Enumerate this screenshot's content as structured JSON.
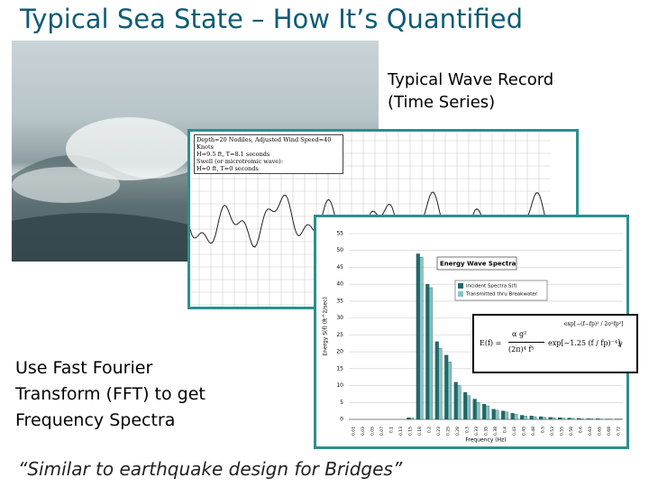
{
  "slide": {
    "title": "Typical Sea State – How It’s Quantified",
    "wave_caption": [
      "Typical Wave Record",
      "(Time Series)"
    ],
    "fft_caption": [
      "Use Fast Fourier",
      "Transform (FFT) to get",
      "Frequency Spectra"
    ],
    "quote": "“Similar to earthquake design for Bridges”",
    "wave_record_header": [
      "Depth=20 Nodiles, Adjusted Wind Speed=40 Knots",
      "H=9.5 ft, T=8.1 seconds",
      "Swell (or microtromic wave):",
      "H=0 ft, T=0 seconds"
    ],
    "formula": {
      "lhs": "E(f) =",
      "num": "α g²",
      "den": "(2π)⁴ f⁵",
      "exp": "exp[−1.25 (f / fp)⁻⁴]",
      "gamma": "γ",
      "gexp": "exp[−(f−fp)² / 2σ²fp²]"
    }
  },
  "chart_data": {
    "type": "bar",
    "title": "Energy Wave Spectra",
    "x_label": "Frequency (Hz)",
    "y_label": "Energy S(f) (ft^2/sec)",
    "categories": [
      "0.01",
      "0.03",
      "0.05",
      "0.07",
      "0.1",
      "0.13",
      "0.15",
      "0.18",
      "0.2",
      "0.23",
      "0.25",
      "0.28",
      "0.3",
      "0.33",
      "0.35",
      "0.38",
      "0.4",
      "0.43",
      "0.45",
      "0.48",
      "0.5",
      "0.53",
      "0.55",
      "0.58",
      "0.6",
      "0.63",
      "0.65",
      "0.68",
      "0.72"
    ],
    "series": [
      {
        "name": "Incident Spectra S(f)",
        "color": "#1f6b6b",
        "values": [
          0,
          0,
          0,
          0,
          0,
          0,
          0.5,
          49,
          40,
          23,
          19,
          11,
          8,
          6,
          4.5,
          3,
          2.5,
          1.8,
          1.2,
          1,
          0.8,
          0.6,
          0.5,
          0.4,
          0.3,
          0.2,
          0.2,
          0.1,
          0.1
        ]
      },
      {
        "name": "Transmitted thru Breakwater",
        "color": "#86c4c4",
        "values": [
          0,
          0,
          0,
          0,
          0,
          0,
          0.4,
          48,
          39,
          21,
          17,
          10,
          7,
          5,
          4,
          2.7,
          2.2,
          1.5,
          1,
          0.8,
          0.6,
          0.5,
          0.4,
          0.3,
          0.2,
          0.2,
          0.1,
          0.1,
          0.1
        ]
      }
    ],
    "ylim": [
      0,
      55
    ],
    "yticks": [
      0,
      5,
      10,
      15,
      20,
      25,
      30,
      35,
      40,
      45,
      50,
      55
    ],
    "grid": true
  }
}
